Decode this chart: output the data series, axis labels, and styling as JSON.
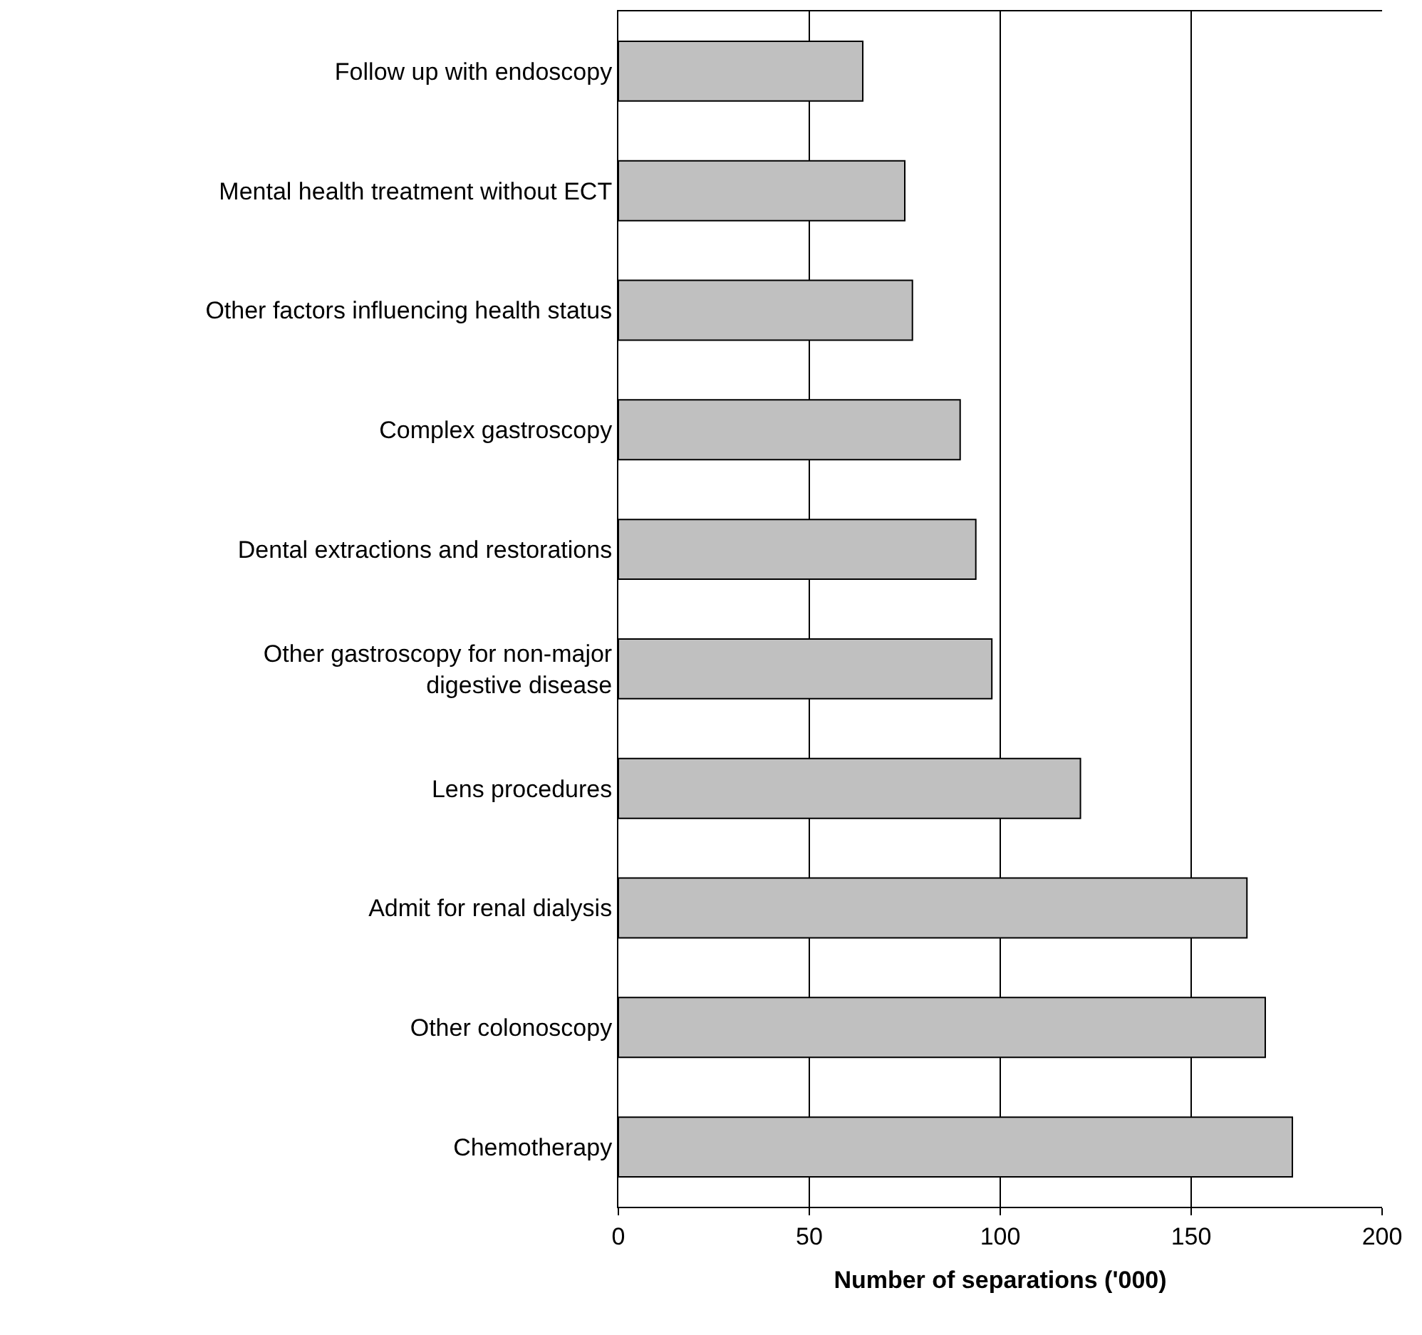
{
  "chart_data": {
    "type": "bar",
    "orientation": "horizontal",
    "xlabel": "Number of separations ('000)",
    "categories": [
      "Follow up with endoscopy",
      "Mental health treatment without ECT",
      "Other factors influencing health status",
      "Complex gastroscopy",
      "Dental extractions and restorations",
      "Other gastroscopy for non-major\ndigestive disease",
      "Lens procedures",
      "Admit for renal dialysis",
      "Other colonoscopy",
      "Chemotherapy"
    ],
    "values": [
      64,
      75,
      77,
      89.5,
      93.6,
      97.8,
      121,
      164.6,
      169.4,
      176.5
    ],
    "color": "#c0c0c0",
    "xlim": [
      0,
      200
    ],
    "xticks": [
      0,
      50,
      100,
      150,
      200
    ],
    "grid": "x"
  }
}
